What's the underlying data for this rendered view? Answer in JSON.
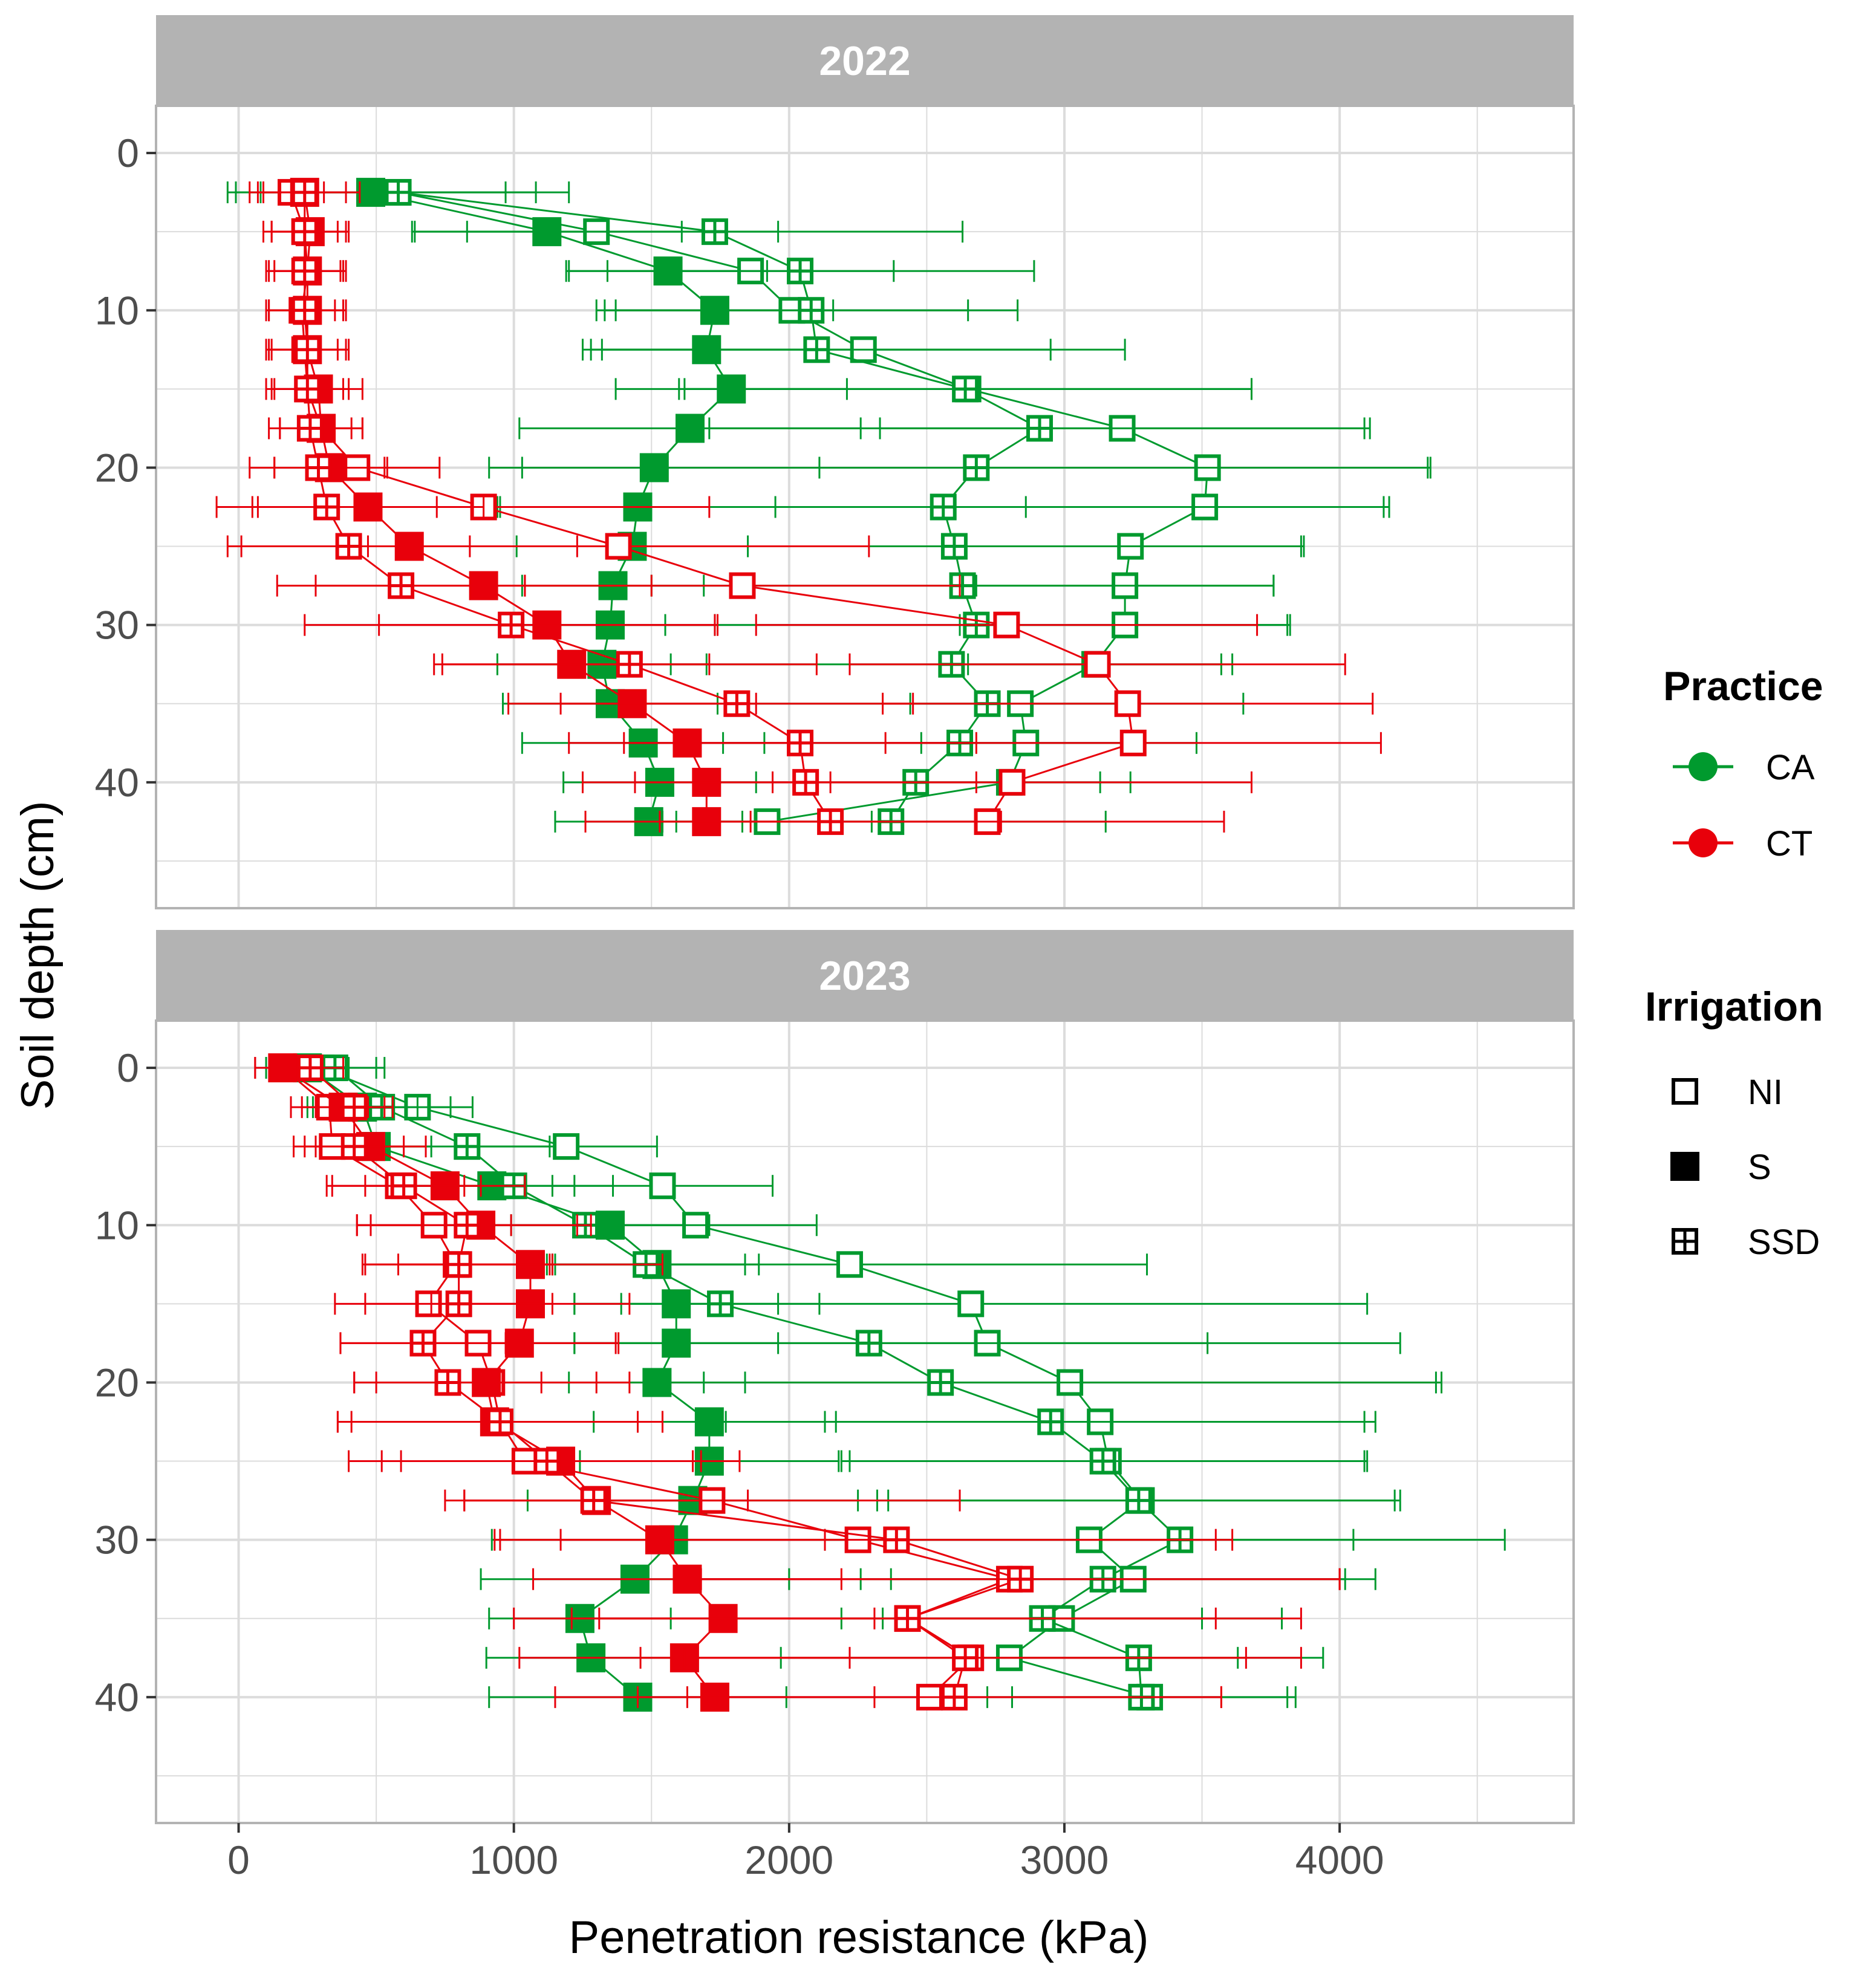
{
  "chart_data": {
    "type": "scatter",
    "facets": [
      "2022",
      "2023"
    ],
    "xlabel": "Penetration resistance (kPa)",
    "ylabel": "Soil depth (cm)",
    "xlim": [
      -300,
      4850
    ],
    "ylim": [
      -3,
      48
    ],
    "x_ticks": [
      0,
      1000,
      2000,
      3000,
      4000
    ],
    "y_ticks": [
      0,
      10,
      20,
      30,
      40
    ],
    "grid": true,
    "colors": {
      "CA": "#009a2e",
      "CT": "#e8000b",
      "strip_bg": "#b3b3b3",
      "grid": "#dcdcdc",
      "panel_border": "#b3b3b3"
    },
    "legend": {
      "practice_title": "Practice",
      "practice_items": [
        {
          "label": "CA",
          "color": "#009a2e"
        },
        {
          "label": "CT",
          "color": "#e8000b"
        }
      ],
      "irrigation_title": "Irrigation",
      "irrigation_items": [
        {
          "label": "NI",
          "shape": "open-square"
        },
        {
          "label": "S",
          "shape": "filled-square"
        },
        {
          "label": "SSD",
          "shape": "crossed-square"
        }
      ]
    },
    "series": [
      {
        "year": "2022",
        "practice": "CA",
        "irrigation": "NI",
        "depth": [
          2.5,
          5,
          7.5,
          10,
          12.5,
          15,
          17.5,
          20,
          22.5,
          25,
          27.5,
          30,
          32.5,
          35,
          37.5,
          40,
          42.5
        ],
        "x": [
          580,
          1300,
          1860,
          2010,
          2270,
          2650,
          3210,
          3520,
          3510,
          3240,
          3220,
          3220,
          3110,
          2840,
          2860,
          2800,
          1920
        ],
        "sd": [
          500,
          660,
          520,
          640,
          950,
          1030,
          880,
          800,
          650,
          630,
          540,
          600,
          460,
          400,
          380,
          330,
          380
        ]
      },
      {
        "year": "2022",
        "practice": "CA",
        "irrigation": "S",
        "depth": [
          2.5,
          5,
          7.5,
          10,
          12.5,
          15,
          17.5,
          20,
          22.5,
          25,
          27.5,
          30,
          32.5,
          35,
          37.5,
          40,
          42.5
        ],
        "x": [
          480,
          1120,
          1560,
          1730,
          1700,
          1790,
          1640,
          1510,
          1450,
          1430,
          1360,
          1350,
          1320,
          1350,
          1470,
          1530,
          1490
        ],
        "sd": [
          490,
          490,
          360,
          430,
          420,
          420,
          620,
          600,
          500,
          420,
          330,
          380,
          380,
          390,
          440,
          350,
          340
        ]
      },
      {
        "year": "2022",
        "practice": "CA",
        "irrigation": "SSD",
        "depth": [
          2.5,
          5,
          7.5,
          10,
          12.5,
          15,
          17.5,
          20,
          22.5,
          25,
          27.5,
          30,
          32.5,
          35,
          37.5,
          40,
          42.5
        ],
        "x": [
          580,
          1730,
          2040,
          2080,
          2100,
          2640,
          2910,
          2680,
          2560,
          2600,
          2630,
          2680,
          2590,
          2720,
          2620,
          2460,
          2370
        ],
        "sd": [
          620,
          900,
          850,
          750,
          850,
          1040,
          1200,
          1650,
          1620,
          1260,
          1130,
          1130,
          1020,
          930,
          860,
          780,
          780
        ]
      },
      {
        "year": "2022",
        "practice": "CT",
        "irrigation": "NI",
        "depth": [
          2.5,
          5,
          7.5,
          10,
          12.5,
          15,
          17.5,
          20,
          22.5,
          25,
          27.5,
          30,
          32.5,
          35,
          37.5,
          40,
          42.5
        ],
        "x": [
          190,
          240,
          250,
          230,
          240,
          250,
          300,
          430,
          890,
          1380,
          1830,
          2790,
          3120,
          3230,
          3250,
          2810,
          2720
        ],
        "sd": [
          120,
          120,
          120,
          120,
          120,
          130,
          150,
          300,
          820,
          910,
          790,
          910,
          900,
          890,
          900,
          870,
          860
        ]
      },
      {
        "year": "2022",
        "practice": "CT",
        "irrigation": "S",
        "depth": [
          2.5,
          5,
          7.5,
          10,
          12.5,
          15,
          17.5,
          20,
          22.5,
          25,
          27.5,
          30,
          32.5,
          35,
          37.5,
          40,
          42.5
        ],
        "x": [
          240,
          260,
          250,
          250,
          250,
          290,
          300,
          330,
          470,
          620,
          890,
          1120,
          1210,
          1430,
          1630,
          1700,
          1700
        ],
        "sd": [
          150,
          140,
          140,
          140,
          150,
          160,
          150,
          200,
          420,
          610,
          610,
          610,
          500,
          450,
          430,
          450,
          440
        ]
      },
      {
        "year": "2022",
        "practice": "CT",
        "irrigation": "SSD",
        "depth": [
          2.5,
          5,
          7.5,
          10,
          12.5,
          15,
          17.5,
          20,
          22.5,
          25,
          27.5,
          30,
          32.5,
          35,
          37.5,
          40,
          42.5
        ],
        "x": [
          240,
          240,
          240,
          240,
          250,
          250,
          260,
          290,
          320,
          400,
          590,
          990,
          1420,
          1810,
          2040,
          2060,
          2150
        ],
        "sd": [
          200,
          150,
          140,
          140,
          140,
          150,
          150,
          250,
          400,
          440,
          450,
          750,
          680,
          640,
          640,
          620,
          620
        ]
      },
      {
        "year": "2023",
        "practice": "CA",
        "irrigation": "NI",
        "depth": [
          0,
          2.5,
          5,
          7.5,
          10,
          12.5,
          15,
          17.5,
          20,
          22.5,
          25,
          27.5,
          30,
          32.5,
          35,
          37.5,
          40
        ],
        "x": [
          300,
          650,
          1190,
          1540,
          1660,
          2220,
          2660,
          2720,
          3020,
          3130,
          3160,
          3280,
          3090,
          3250,
          2990,
          2800,
          3310
        ],
        "sd": [
          200,
          200,
          330,
          400,
          440,
          1080,
          1440,
          1500,
          1330,
          960,
          940,
          920,
          960,
          880,
          800,
          830,
          500
        ]
      },
      {
        "year": "2023",
        "practice": "CA",
        "irrigation": "S",
        "depth": [
          0,
          2.5,
          5,
          7.5,
          10,
          12.5,
          15,
          17.5,
          20,
          22.5,
          25,
          27.5,
          30,
          32.5,
          35,
          37.5,
          40
        ],
        "x": [
          250,
          450,
          500,
          920,
          1350,
          1520,
          1590,
          1590,
          1520,
          1710,
          1710,
          1650,
          1580,
          1440,
          1240,
          1280,
          1450
        ],
        "sd": [
          150,
          200,
          200,
          300,
          360,
          370,
          370,
          370,
          320,
          420,
          470,
          600,
          660,
          560,
          330,
          380,
          540
        ]
      },
      {
        "year": "2023",
        "practice": "CA",
        "irrigation": "SSD",
        "depth": [
          0,
          2.5,
          5,
          7.5,
          10,
          12.5,
          15,
          17.5,
          20,
          22.5,
          25,
          27.5,
          30,
          32.5,
          35,
          37.5,
          40
        ],
        "x": [
          350,
          520,
          830,
          1000,
          1260,
          1480,
          1750,
          2290,
          2550,
          2950,
          3140,
          3270,
          3420,
          3140,
          2920,
          3270,
          3280
        ],
        "sd": [
          180,
          250,
          300,
          360,
          360,
          360,
          360,
          1230,
          1820,
          1180,
          950,
          950,
          1180,
          880,
          580,
          670,
          560
        ]
      },
      {
        "year": "2023",
        "practice": "CT",
        "irrigation": "NI",
        "depth": [
          0,
          2.5,
          5,
          7.5,
          10,
          12.5,
          15,
          17.5,
          20,
          22.5,
          25,
          27.5,
          30,
          32.5,
          35,
          37.5,
          40
        ],
        "x": [
          160,
          330,
          340,
          580,
          710,
          790,
          690,
          870,
          920,
          950,
          1040,
          1720,
          2250,
          2800,
          2430,
          2660,
          2510
        ],
        "sd": [
          100,
          140,
          140,
          240,
          280,
          340,
          340,
          500,
          500,
          590,
          640,
          900,
          1300,
          1200,
          1430,
          1200,
          1060
        ]
      },
      {
        "year": "2023",
        "practice": "CT",
        "irrigation": "S",
        "depth": [
          0,
          2.5,
          5,
          7.5,
          10,
          12.5,
          15,
          17.5,
          20,
          22.5,
          25,
          27.5,
          30,
          32.5,
          35,
          37.5,
          40
        ],
        "x": [
          160,
          380,
          480,
          750,
          880,
          1060,
          1060,
          1020,
          900,
          930,
          1170,
          1300,
          1530,
          1630,
          1760,
          1620,
          1730
        ],
        "sd": [
          100,
          150,
          200,
          290,
          400,
          480,
          360,
          360,
          400,
          520,
          650,
          550,
          600,
          560,
          550,
          600,
          580
        ]
      },
      {
        "year": "2023",
        "practice": "CT",
        "irrigation": "SSD",
        "depth": [
          0,
          2.5,
          5,
          7.5,
          10,
          12.5,
          15,
          17.5,
          20,
          22.5,
          25,
          27.5,
          30,
          32.5,
          35,
          37.5,
          40
        ],
        "x": [
          260,
          420,
          420,
          600,
          830,
          800,
          800,
          670,
          760,
          950,
          1120,
          1290,
          2390,
          2840,
          2430,
          2640,
          2600
        ],
        "sd": [
          120,
          140,
          180,
          280,
          400,
          340,
          340,
          300,
          340,
          590,
          530,
          470,
          1220,
          1160,
          1120,
          1020,
          970
        ]
      }
    ]
  }
}
